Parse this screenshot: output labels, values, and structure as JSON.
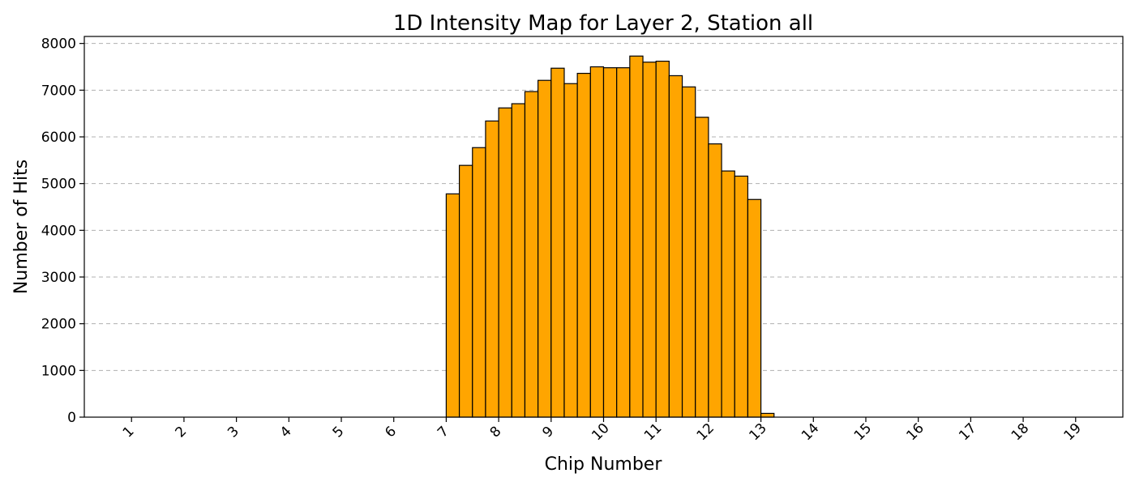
{
  "chart_data": {
    "type": "bar",
    "title": "1D Intensity Map for Layer 2, Station all",
    "xlabel": "Chip Number",
    "ylabel": "Number of Hits",
    "x_ticks": [
      "1",
      "2",
      "3",
      "4",
      "5",
      "6",
      "7",
      "8",
      "9",
      "10",
      "11",
      "12",
      "13",
      "14",
      "15",
      "16",
      "17",
      "18",
      "19"
    ],
    "y_ticks": [
      0,
      1000,
      2000,
      3000,
      4000,
      5000,
      6000,
      7000,
      8000
    ],
    "xlim": [
      0.1,
      19.9
    ],
    "ylim": [
      0,
      8150
    ],
    "bin_width": 0.25,
    "bins": [
      {
        "x_start": 7.0,
        "value": 4780
      },
      {
        "x_start": 7.25,
        "value": 5390
      },
      {
        "x_start": 7.5,
        "value": 5770
      },
      {
        "x_start": 7.75,
        "value": 6340
      },
      {
        "x_start": 8.0,
        "value": 6620
      },
      {
        "x_start": 8.25,
        "value": 6710
      },
      {
        "x_start": 8.5,
        "value": 6970
      },
      {
        "x_start": 8.75,
        "value": 7210
      },
      {
        "x_start": 9.0,
        "value": 7470
      },
      {
        "x_start": 9.25,
        "value": 7140
      },
      {
        "x_start": 9.5,
        "value": 7360
      },
      {
        "x_start": 9.75,
        "value": 7500
      },
      {
        "x_start": 10.0,
        "value": 7480
      },
      {
        "x_start": 10.25,
        "value": 7480
      },
      {
        "x_start": 10.5,
        "value": 7730
      },
      {
        "x_start": 10.75,
        "value": 7600
      },
      {
        "x_start": 11.0,
        "value": 7620
      },
      {
        "x_start": 11.25,
        "value": 7310
      },
      {
        "x_start": 11.5,
        "value": 7070
      },
      {
        "x_start": 11.75,
        "value": 6420
      },
      {
        "x_start": 12.0,
        "value": 5850
      },
      {
        "x_start": 12.25,
        "value": 5270
      },
      {
        "x_start": 12.5,
        "value": 5160
      },
      {
        "x_start": 12.75,
        "value": 4660
      },
      {
        "x_start": 13.0,
        "value": 80
      }
    ],
    "bar_color": "#ffa500",
    "edge_color": "#000000",
    "grid": "y-dashed",
    "x_tick_rotation": "45deg"
  }
}
